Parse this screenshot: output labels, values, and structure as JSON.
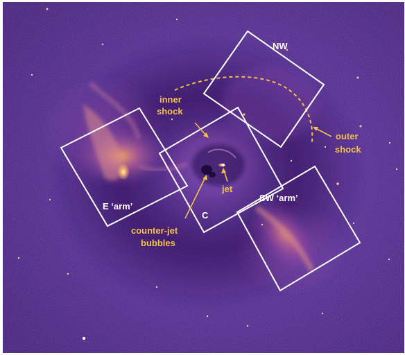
{
  "image": {
    "description_colors": {
      "background_deep": "#2a1258",
      "background_mid": "#5a2e95",
      "emission_bright": "#f6b86a",
      "emission_core": "#fff4dc",
      "box_stroke": "#ffffff",
      "annotation": "#f2c14a"
    }
  },
  "regions": {
    "nw": "NW",
    "e_arm": "E ‘arm’",
    "c": "C",
    "sw_arm": "SW ‘arm’"
  },
  "annotations": {
    "inner_shock_line1": "inner",
    "inner_shock_line2": "shock",
    "outer_shock_line1": "outer",
    "outer_shock_line2": "shock",
    "jet": "jet",
    "counter_jet_line1": "counter-jet",
    "counter_jet_line2": "bubbles"
  }
}
